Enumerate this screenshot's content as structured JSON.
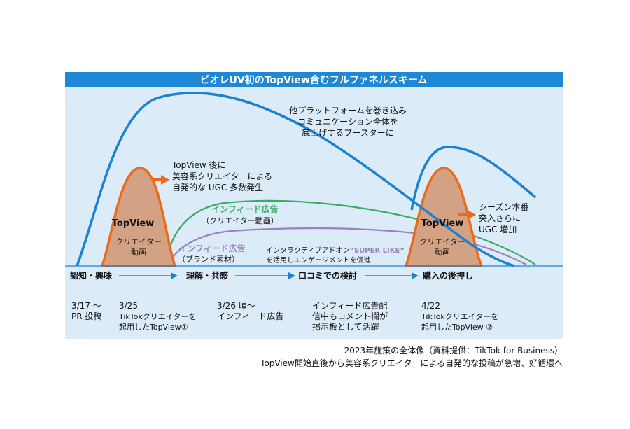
{
  "title": "ビオレUV初のTopView含むフルファネルスキーム",
  "colors": {
    "banner": "#1e88d6",
    "panel": "#dcebf8",
    "blue_curve": "#1c82d0",
    "orange": "#ec6b1a",
    "orange_fill": "#d3a184",
    "green": "#3aab62",
    "purple": "#9d7fc4",
    "axis": "#1c82d0"
  },
  "annotations": {
    "booster": [
      "他プラットフォームを巻き込み",
      "コミュニケーション全体を",
      "底上げするブースターに"
    ],
    "after_topview": [
      "TopView 後に",
      "美容系クリエイターによる",
      "自発的な UGC 多数発生"
    ],
    "season": [
      "シーズン本番",
      "突入さらに",
      "UGC 増加"
    ],
    "infeed_creator": {
      "title": "インフィード広告",
      "sub": "（クリエイター動画）"
    },
    "infeed_brand": {
      "title": "インフィード広告",
      "sub": "（ブランド素材）"
    },
    "interactive": {
      "line1_prefix": "インタラクティブアドオン",
      "line1_highlight": "“SUPER LIKE”",
      "line2": "を活用しエンゲージメントを促進"
    }
  },
  "peaks": [
    {
      "label": "TopView",
      "sub1": "クリエイター",
      "sub2": "動画"
    },
    {
      "label": "TopView",
      "sub1": "クリエイター",
      "sub2": "動画"
    }
  ],
  "stages": [
    "認知・興味",
    "理解・共感",
    "口コミでの検討",
    "購入の後押し"
  ],
  "timeline": [
    {
      "lines": [
        "3/17 〜",
        "PR 投稿"
      ]
    },
    {
      "lines": [
        "3/25",
        "TikTokクリエイターを",
        "起用したTopView①"
      ]
    },
    {
      "lines": [
        "3/26 頃〜",
        "インフィード広告"
      ]
    },
    {
      "lines": [
        "インフィード広告配",
        "信中もコメント欄が",
        "掲示板として活躍"
      ]
    },
    {
      "lines": [
        "4/22",
        "TikTokクリエイターを",
        "起用したTopView ②"
      ]
    }
  ],
  "caption": {
    "line1": "2023年施策の全体像（資料提供：TikTok for Business）",
    "line2": "TopView開始直後から美容系クリエイターによる自発的な投稿が急増、好循環へ"
  }
}
